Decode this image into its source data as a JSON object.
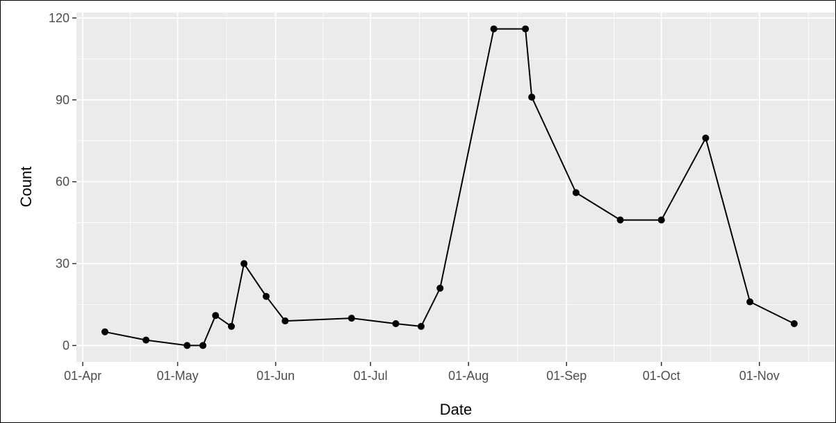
{
  "chart_data": {
    "type": "line",
    "title": "",
    "xlabel": "Date",
    "ylabel": "Count",
    "x_tick_labels": [
      "01-Apr",
      "01-May",
      "01-Jun",
      "01-Jul",
      "01-Aug",
      "01-Sep",
      "01-Oct",
      "01-Nov"
    ],
    "x_tick_dates": [
      "2020-04-01",
      "2020-05-01",
      "2020-06-01",
      "2020-07-01",
      "2020-08-01",
      "2020-09-01",
      "2020-10-01",
      "2020-11-01"
    ],
    "y_ticks": [
      0,
      30,
      60,
      90,
      120
    ],
    "xlim": [
      "2020-03-30",
      "2020-11-25"
    ],
    "ylim": [
      -6,
      122
    ],
    "grid": true,
    "legend": "none",
    "colors": {
      "panel": "#ebebeb",
      "grid": "#ffffff",
      "line": "#000000",
      "tick_text": "#4d4d4d",
      "tick_mark": "#333333"
    },
    "series": [
      {
        "x": [
          "2020-04-08",
          "2020-04-21",
          "2020-05-04",
          "2020-05-09",
          "2020-05-13",
          "2020-05-18",
          "2020-05-22",
          "2020-05-29",
          "2020-06-04",
          "2020-06-25",
          "2020-07-09",
          "2020-07-17",
          "2020-07-23",
          "2020-08-09",
          "2020-08-19",
          "2020-08-21",
          "2020-09-04",
          "2020-09-18",
          "2020-10-01",
          "2020-10-15",
          "2020-10-29",
          "2020-11-12"
        ],
        "y": [
          5,
          2,
          0,
          0,
          11,
          7,
          30,
          18,
          9,
          10,
          8,
          7,
          21,
          116,
          116,
          91,
          56,
          46,
          46,
          76,
          16,
          8
        ]
      }
    ]
  }
}
